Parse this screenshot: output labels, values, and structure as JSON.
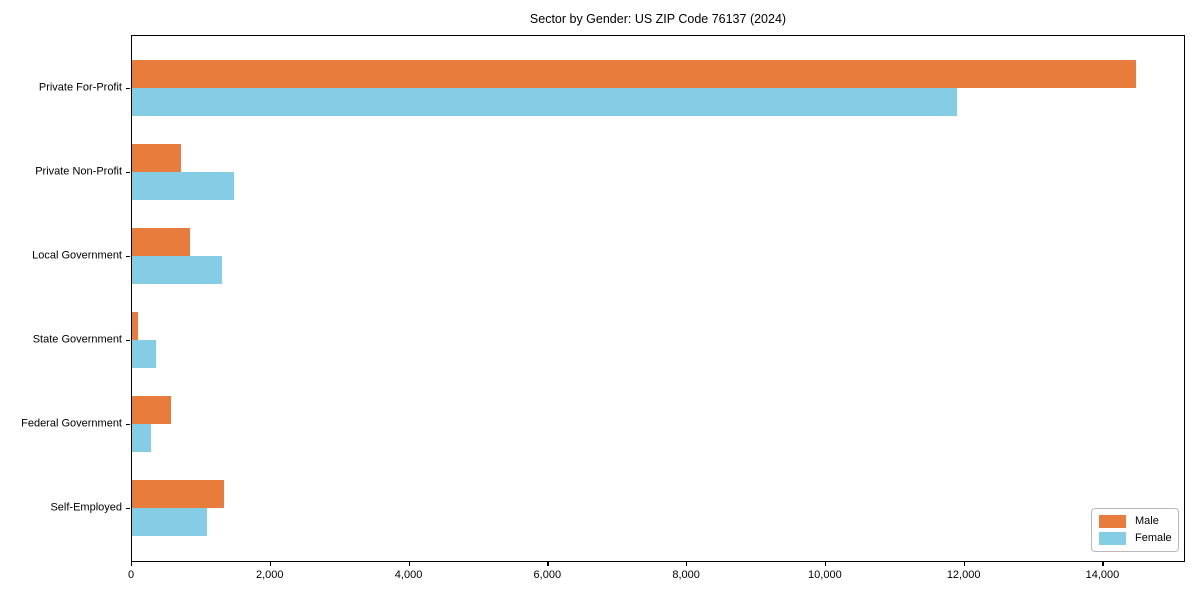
{
  "title": "Sector by Gender: US ZIP Code 76137 (2024)",
  "colors": {
    "male": "#e77c3c",
    "female": "#85cde4",
    "axis": "#000000",
    "text": "#000000",
    "legend_border": "#b8b8b8",
    "background": "#ffffff"
  },
  "legend": {
    "position": "lower right",
    "items": [
      {
        "label": "Male",
        "color_key": "male"
      },
      {
        "label": "Female",
        "color_key": "female"
      }
    ]
  },
  "chart_data": {
    "type": "bar",
    "orientation": "horizontal",
    "title": "Sector by Gender: US ZIP Code 76137 (2024)",
    "xlabel": "",
    "ylabel": "",
    "categories": [
      "Private For-Profit",
      "Private Non-Profit",
      "Local Government",
      "State Government",
      "Federal Government",
      "Self-Employed"
    ],
    "series": [
      {
        "name": "Male",
        "values": [
          14480,
          720,
          845,
          95,
          580,
          1345
        ]
      },
      {
        "name": "Female",
        "values": [
          11910,
          1490,
          1310,
          365,
          295,
          1095
        ]
      }
    ],
    "xlim": [
      0,
      15190
    ],
    "x_ticks": [
      0,
      2000,
      4000,
      6000,
      8000,
      10000,
      12000,
      14000
    ],
    "x_tick_labels": [
      "0",
      "2,000",
      "4,000",
      "6,000",
      "8,000",
      "10,000",
      "12,000",
      "14,000"
    ],
    "grid": false,
    "legend_position": "lower right"
  }
}
